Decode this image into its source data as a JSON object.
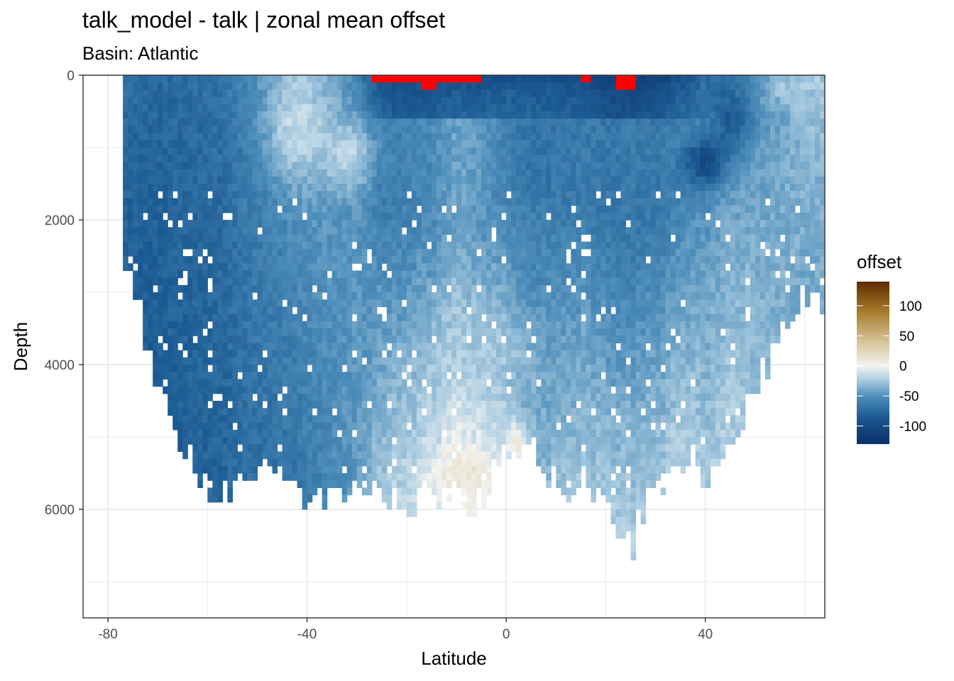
{
  "chart_data": {
    "type": "heatmap",
    "title": "talk_model - talk  | zonal mean offset",
    "subtitle": "Basin: Atlantic",
    "xlabel": "Latitude",
    "ylabel": "Depth",
    "xlim": [
      -85,
      64
    ],
    "ylim": [
      0,
      7500
    ],
    "y_reversed": true,
    "x_ticks": [
      -80,
      -40,
      0,
      40
    ],
    "x_tick_labels": [
      "-80",
      "-40",
      "0",
      "40"
    ],
    "y_ticks": [
      0,
      2000,
      4000,
      6000
    ],
    "y_tick_labels": [
      "0",
      "2000",
      "4000",
      "6000"
    ],
    "grid": true,
    "legend": {
      "title": "offset",
      "placement": "right",
      "range": [
        -130,
        140
      ],
      "breaks": [
        100,
        50,
        0,
        -50,
        -100
      ],
      "break_labels": [
        "100",
        "50",
        "0",
        "-50",
        "-100"
      ]
    },
    "colors": {
      "low": "#0b2e66",
      "mid_low": "#4f8fbb",
      "zero": "#f3f3f0",
      "mid_high": "#a87c2b",
      "high": "#5e2a00",
      "out_of_range": "#ff0000"
    },
    "profile": [
      {
        "lat": -77,
        "bottom": 2400,
        "surface": -70,
        "deep": -80
      },
      {
        "lat": -72,
        "bottom": 3700,
        "surface": -75,
        "deep": -85
      },
      {
        "lat": -68,
        "bottom": 4500,
        "surface": -75,
        "deep": -82
      },
      {
        "lat": -62,
        "bottom": 5500,
        "surface": -72,
        "deep": -80
      },
      {
        "lat": -57,
        "bottom": 5700,
        "surface": -70,
        "deep": -78
      },
      {
        "lat": -52,
        "bottom": 5600,
        "surface": -55,
        "deep": -72
      },
      {
        "lat": -47,
        "bottom": 5300,
        "surface": -45,
        "deep": -70
      },
      {
        "lat": -42,
        "bottom": 5800,
        "surface": -30,
        "deep": -68
      },
      {
        "lat": -35,
        "bottom": 5700,
        "surface": -40,
        "deep": -55
      },
      {
        "lat": -30,
        "bottom": 5600,
        "surface": -55,
        "deep": -45
      },
      {
        "lat": -25,
        "bottom": 5700,
        "surface": -100,
        "deep": -25
      },
      {
        "lat": -20,
        "bottom": 5900,
        "surface": -105,
        "deep": -15
      },
      {
        "lat": -15,
        "bottom": 5700,
        "surface": -105,
        "deep": -10
      },
      {
        "lat": -10,
        "bottom": 5800,
        "surface": -100,
        "deep": 5
      },
      {
        "lat": -5,
        "bottom": 5900,
        "surface": -100,
        "deep": 0
      },
      {
        "lat": 0,
        "bottom": 5000,
        "surface": -95,
        "deep": -20
      },
      {
        "lat": 5,
        "bottom": 5100,
        "surface": -95,
        "deep": -35
      },
      {
        "lat": 10,
        "bottom": 5600,
        "surface": -95,
        "deep": -30
      },
      {
        "lat": 15,
        "bottom": 5600,
        "surface": -100,
        "deep": -25
      },
      {
        "lat": 20,
        "bottom": 5800,
        "surface": -110,
        "deep": -25
      },
      {
        "lat": 25,
        "bottom": 6500,
        "surface": -115,
        "deep": -20
      },
      {
        "lat": 30,
        "bottom": 5600,
        "surface": -110,
        "deep": -25
      },
      {
        "lat": 35,
        "bottom": 5400,
        "surface": -95,
        "deep": -20
      },
      {
        "lat": 40,
        "bottom": 5400,
        "surface": -75,
        "deep": -25
      },
      {
        "lat": 45,
        "bottom": 5100,
        "surface": -65,
        "deep": -20
      },
      {
        "lat": 50,
        "bottom": 4300,
        "surface": -55,
        "deep": -30
      },
      {
        "lat": 55,
        "bottom": 3600,
        "surface": -45,
        "deep": -35
      },
      {
        "lat": 60,
        "bottom": 3000,
        "surface": -25,
        "deep": -40
      },
      {
        "lat": 64,
        "bottom": 3100,
        "surface": -25,
        "deep": -40
      }
    ],
    "features": [
      {
        "lat": -42,
        "depth": 700,
        "value": -15,
        "radius_lat": 6,
        "radius_depth": 700
      },
      {
        "lat": -32,
        "depth": 1100,
        "value": -18,
        "radius_lat": 6,
        "radius_depth": 500
      },
      {
        "lat": -5,
        "depth": 3800,
        "value": -25,
        "radius_lat": 10,
        "radius_depth": 500
      },
      {
        "lat": -8,
        "depth": 5500,
        "value": 12,
        "radius_lat": 6,
        "radius_depth": 300
      },
      {
        "lat": 2,
        "depth": 5100,
        "value": 10,
        "radius_lat": 2,
        "radius_depth": 300
      },
      {
        "lat": 40,
        "depth": 1200,
        "value": -105,
        "radius_lat": 4,
        "radius_depth": 300
      },
      {
        "lat": 45,
        "depth": 600,
        "value": -85,
        "radius_lat": 4,
        "radius_depth": 500
      },
      {
        "lat": 57,
        "depth": 150,
        "value": -25,
        "radius_lat": 5,
        "radius_depth": 250
      }
    ],
    "out_of_range_cells": [
      {
        "lat_from": -27,
        "lat_to": -6,
        "depth_from": 0,
        "depth_to": 100
      },
      {
        "lat_from": -17,
        "lat_to": -15,
        "depth_from": 100,
        "depth_to": 200
      },
      {
        "lat_from": -8,
        "lat_to": -8,
        "depth_from": 0,
        "depth_to": 100
      },
      {
        "lat_from": 15,
        "lat_to": 16,
        "depth_from": 0,
        "depth_to": 100
      },
      {
        "lat_from": 22,
        "lat_to": 25,
        "depth_from": 0,
        "depth_to": 200
      }
    ]
  }
}
